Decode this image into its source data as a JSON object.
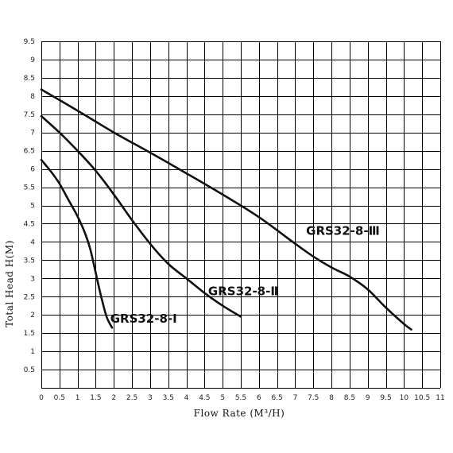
{
  "chart_data": {
    "type": "line",
    "xlabel": "Flow Rate (M³/H)",
    "ylabel": "Total Head H(M)",
    "xlim": [
      0,
      11
    ],
    "ylim": [
      0,
      9.5
    ],
    "xticks": [
      "0",
      "0.5",
      "1",
      "1.5",
      "2",
      "2.5",
      "3",
      "3.5",
      "4",
      "4.5",
      "5",
      "5.5",
      "6",
      "6.5",
      "7",
      "7.5",
      "8",
      "8.5",
      "9",
      "9.5",
      "10",
      "10.5",
      "11"
    ],
    "yticks": [
      "0.5",
      "1",
      "1.5",
      "2",
      "2.5",
      "3",
      "3.5",
      "4",
      "4.5",
      "5",
      "5.5",
      "6",
      "6.5",
      "7",
      "7.5",
      "8",
      "8.5",
      "9",
      "9.5"
    ],
    "grid": true,
    "series": [
      {
        "name": "GRS32-8-Ⅰ",
        "label_at": [
          1.9,
          1.9
        ],
        "points": [
          [
            0,
            6.25
          ],
          [
            0.25,
            5.95
          ],
          [
            0.5,
            5.6
          ],
          [
            0.75,
            5.15
          ],
          [
            1.0,
            4.7
          ],
          [
            1.2,
            4.25
          ],
          [
            1.35,
            3.8
          ],
          [
            1.5,
            3.15
          ],
          [
            1.65,
            2.5
          ],
          [
            1.8,
            1.95
          ],
          [
            1.95,
            1.65
          ]
        ]
      },
      {
        "name": "GRS32-8-Ⅱ",
        "label_at": [
          4.6,
          2.65
        ],
        "points": [
          [
            0,
            7.45
          ],
          [
            0.5,
            7.0
          ],
          [
            1.0,
            6.5
          ],
          [
            1.5,
            5.95
          ],
          [
            2.0,
            5.3
          ],
          [
            2.5,
            4.6
          ],
          [
            3.0,
            3.95
          ],
          [
            3.5,
            3.4
          ],
          [
            4.0,
            3.0
          ],
          [
            4.5,
            2.6
          ],
          [
            5.0,
            2.25
          ],
          [
            5.5,
            1.95
          ]
        ]
      },
      {
        "name": "GRS32-8-Ⅲ",
        "label_at": [
          7.3,
          4.3
        ],
        "points": [
          [
            0,
            8.18
          ],
          [
            1.0,
            7.6
          ],
          [
            2.0,
            7.0
          ],
          [
            3.0,
            6.45
          ],
          [
            4.0,
            5.88
          ],
          [
            5.0,
            5.3
          ],
          [
            6.0,
            4.68
          ],
          [
            7.0,
            3.95
          ],
          [
            7.5,
            3.6
          ],
          [
            8.0,
            3.3
          ],
          [
            8.5,
            3.05
          ],
          [
            9.0,
            2.7
          ],
          [
            9.5,
            2.2
          ],
          [
            10.0,
            1.75
          ],
          [
            10.2,
            1.6
          ]
        ]
      }
    ]
  }
}
